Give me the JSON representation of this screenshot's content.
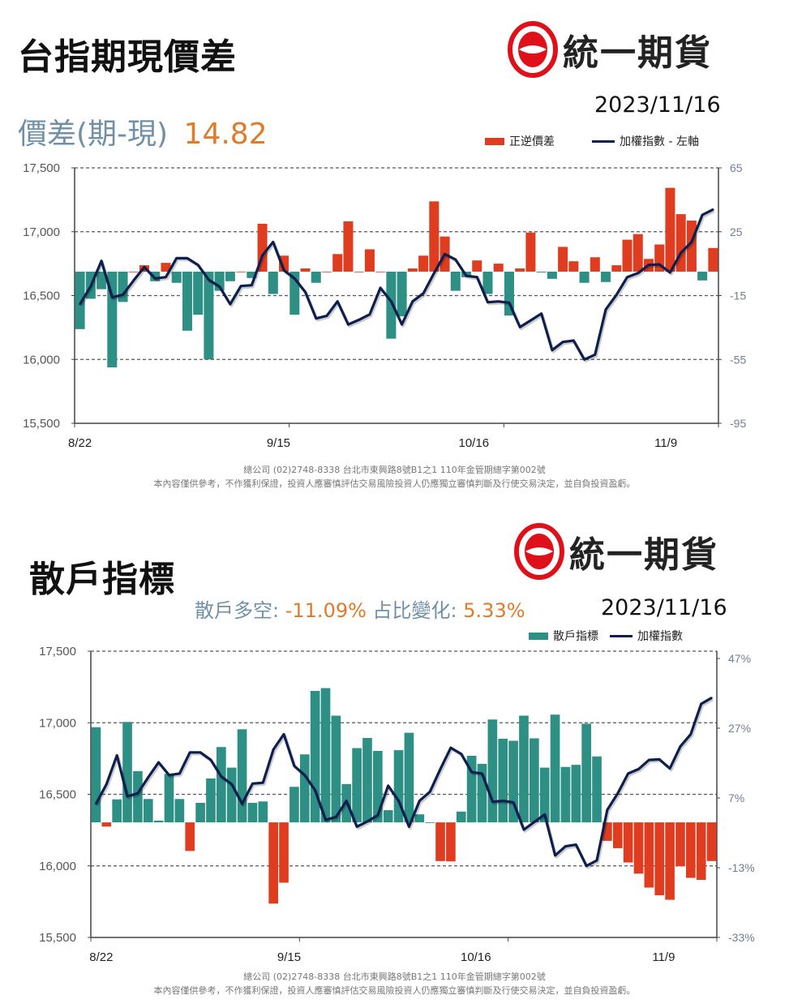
{
  "brand": {
    "name": "統一期貨",
    "color": "#e0101a"
  },
  "colors": {
    "red": "#e03c1f",
    "teal": "#2e8f84",
    "navy": "#0d1f4f",
    "orange": "#e07b2a",
    "slate": "#6f90a6"
  },
  "panel1": {
    "title": "台指期現價差",
    "date": "2023/11/16",
    "metric_label": "價差(期-現)",
    "metric_value": "14.82",
    "legend": {
      "bars": "正逆價差",
      "line": "加權指數 - 左軸"
    },
    "footer": [
      "總公司 (02)2748-8338 台北市東興路8號B1之1 110年金管期總字第002號",
      "本內容僅供參考，不作獲利保證，投資人應審慎評估交易風險投資人仍應獨立審慎判斷及行使交易決定，並自負投資盈虧。"
    ]
  },
  "panel2": {
    "title": "散戶指標",
    "date": "2023/11/16",
    "metric1_label": "散戶多空:",
    "metric1_value": "-11.09%",
    "metric2_label": "占比變化:",
    "metric2_value": "5.33%",
    "legend": {
      "bars": "散戶指標",
      "line": "加權指數"
    },
    "footer": [
      "總公司 (02)2748-8338 台北市東興路8號B1之1 110年金管期總字第002號",
      "本內容僅供參考，不作獲利保證，投資人應審慎評估交易風險投資人仍應獨立審慎判斷及行使交易決定，並自負投資盈虧。"
    ]
  },
  "chart_data": [
    {
      "type": "bar+line",
      "title": "台指期現價差",
      "n": 60,
      "x_ticks": [
        {
          "label": "8/22",
          "at": 0
        },
        {
          "label": "9/15",
          "at": 18.5
        },
        {
          "label": "10/16",
          "at": 36.7
        },
        {
          "label": "11/9",
          "at": 54.6
        }
      ],
      "tick_marks": [
        0,
        20,
        40,
        60
      ],
      "left_axis": {
        "range": [
          15500,
          17500
        ],
        "ticks": [
          {
            "v": 17500,
            "label": "17,500"
          },
          {
            "v": 17000,
            "label": "17,000"
          },
          {
            "v": 16500,
            "label": "16,500"
          },
          {
            "v": 16000,
            "label": "16,000"
          },
          {
            "v": 15500,
            "label": "15,500"
          }
        ]
      },
      "right_axis": {
        "range": [
          -95,
          65
        ],
        "ticks": [
          {
            "v": 65,
            "label": "65"
          },
          {
            "v": 25,
            "label": "25"
          },
          {
            "v": -15,
            "label": "-15"
          },
          {
            "v": -55,
            "label": "-55"
          },
          {
            "v": -95,
            "label": "-95"
          }
        ]
      },
      "grid": true,
      "bars": {
        "name": "正逆價差",
        "axis": "right",
        "positive_color": "#e03c1f",
        "negative_color": "#2e8f84",
        "values": [
          -36,
          -17,
          -11,
          -60,
          -19,
          0,
          4,
          -6,
          5.5,
          -7,
          -37,
          -27,
          -55,
          -12,
          -6,
          0,
          -4,
          30,
          -14,
          10,
          -27,
          2,
          -7,
          0,
          11,
          31.5,
          0,
          14,
          0,
          -42,
          -28,
          2,
          10,
          44,
          22,
          -12,
          -3.5,
          7,
          -14,
          5,
          -27.5,
          2,
          24.5,
          -0.5,
          -4.5,
          15.5,
          6.5,
          -7,
          9,
          -6.5,
          4,
          20,
          23.5,
          8,
          17,
          52.5,
          36,
          32,
          -5.5,
          14.82
        ]
      },
      "line": {
        "name": "加權指數",
        "axis": "left",
        "color": "#0d1f4f",
        "values": [
          16433,
          16571,
          16772,
          16486,
          16507,
          16619,
          16723,
          16634,
          16645,
          16793,
          16793,
          16740,
          16624,
          16571,
          16433,
          16575,
          16581,
          16814,
          16920,
          16698,
          16634,
          16528,
          16321,
          16342,
          16454,
          16274,
          16310,
          16353,
          16560,
          16454,
          16274,
          16454,
          16518,
          16676,
          16825,
          16782,
          16655,
          16645,
          16448,
          16454,
          16444,
          16253,
          16306,
          16359,
          16073,
          16137,
          16148,
          16000,
          16038,
          16391,
          16507,
          16645,
          16676,
          16740,
          16744,
          16681,
          16835,
          16920,
          17132,
          17174
        ]
      }
    },
    {
      "type": "bar+line",
      "title": "散戶指標",
      "n": 60,
      "x_ticks": [
        {
          "label": "8/22",
          "at": 0.5
        },
        {
          "label": "9/15",
          "at": 18.5
        },
        {
          "label": "10/16",
          "at": 36.4
        },
        {
          "label": "11/9",
          "at": 54.4
        }
      ],
      "tick_marks": [
        0,
        20,
        40,
        60
      ],
      "left_axis": {
        "range": [
          15500,
          17500
        ],
        "ticks": [
          {
            "v": 17500,
            "label": "17,500"
          },
          {
            "v": 17000,
            "label": "17,000"
          },
          {
            "v": 16500,
            "label": "16,500"
          },
          {
            "v": 16000,
            "label": "16,000"
          },
          {
            "v": 15500,
            "label": "15,500"
          }
        ]
      },
      "right_axis": {
        "range": [
          -33,
          47
        ],
        "ticks": [
          {
            "v": 47,
            "label": "47%"
          },
          {
            "v": 27,
            "label": "27%"
          },
          {
            "v": 7,
            "label": "7%"
          },
          {
            "v": -13,
            "label": "-13%"
          },
          {
            "v": -33,
            "label": "-33%"
          }
        ]
      },
      "grid": true,
      "bars": {
        "name": "散戶指標",
        "axis": "right",
        "positive_color": "#2e8f84",
        "negative_color": "#e03c1f",
        "values": [
          27.3,
          -1.2,
          6.6,
          28.8,
          14.7,
          6.7,
          0.5,
          13.9,
          6.7,
          -8.2,
          5.6,
          12.6,
          21.6,
          15.7,
          26.7,
          5.6,
          6.0,
          -23.3,
          -17.3,
          10.2,
          19.5,
          37.7,
          38.5,
          30.6,
          11,
          21.3,
          24.2,
          20.5,
          3.5,
          20.7,
          25.7,
          2.3,
          0,
          -11.1,
          -11.2,
          3.1,
          19.1,
          16.8,
          29.5,
          24,
          23.4,
          30.6,
          24.1,
          15.7,
          30.9,
          15.9,
          16.5,
          28.3,
          18.9,
          -5.3,
          -7.4,
          -11.5,
          -14.7,
          -18.7,
          -20.9,
          -22.2,
          -12.6,
          -15.9,
          -16.5,
          -11.09
        ]
      },
      "line": {
        "name": "加權指數",
        "axis": "left",
        "color": "#0d1f4f",
        "values": [
          16433,
          16571,
          16772,
          16486,
          16507,
          16619,
          16723,
          16634,
          16645,
          16793,
          16793,
          16740,
          16624,
          16571,
          16433,
          16575,
          16581,
          16814,
          16920,
          16698,
          16634,
          16528,
          16321,
          16342,
          16454,
          16274,
          16310,
          16353,
          16560,
          16454,
          16274,
          16454,
          16518,
          16676,
          16825,
          16782,
          16655,
          16645,
          16448,
          16454,
          16444,
          16253,
          16306,
          16359,
          16073,
          16137,
          16148,
          16000,
          16038,
          16391,
          16507,
          16645,
          16676,
          16740,
          16744,
          16681,
          16835,
          16920,
          17132,
          17174
        ]
      }
    }
  ]
}
